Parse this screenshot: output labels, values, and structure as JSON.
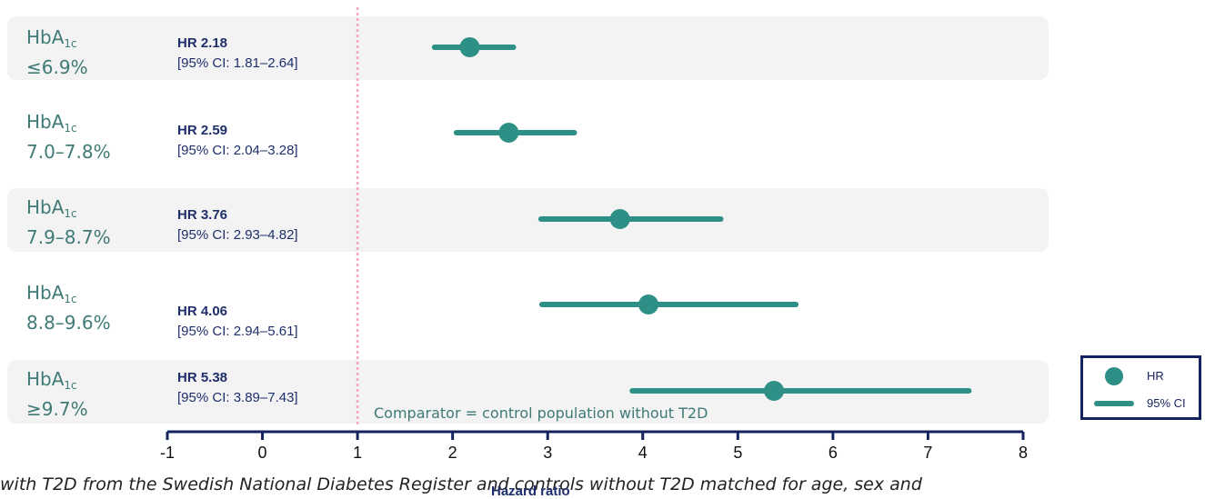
{
  "chart_data": {
    "type": "forest",
    "rows": [
      {
        "label_main": "HbA",
        "label_sub": "1c",
        "range": "≤6.9%",
        "hr_label": "HR 2.18",
        "ci_label": "[95% CI: 1.81–2.64]",
        "hr": 2.18,
        "ci_low": 1.81,
        "ci_high": 2.64
      },
      {
        "label_main": "HbA",
        "label_sub": "1c",
        "range": "7.0–7.8%",
        "hr_label": "HR 2.59",
        "ci_label": "[95% CI: 2.04–3.28]",
        "hr": 2.59,
        "ci_low": 2.04,
        "ci_high": 3.28
      },
      {
        "label_main": "HbA",
        "label_sub": "1c",
        "range": "7.9–8.7%",
        "hr_label": "HR 3.76",
        "ci_label": "[95% CI: 2.93–4.82]",
        "hr": 3.76,
        "ci_low": 2.93,
        "ci_high": 4.82
      },
      {
        "label_main": "HbA",
        "label_sub": "1c",
        "range": "8.8–9.6%",
        "hr_label": "HR 4.06",
        "ci_label": "[95% CI: 2.94–5.61]",
        "hr": 4.06,
        "ci_low": 2.94,
        "ci_high": 5.61
      },
      {
        "label_main": "HbA",
        "label_sub": "1c",
        "range": "≥9.7%",
        "hr_label": "HR 5.38",
        "ci_label": "[95% CI: 3.89–7.43]",
        "hr": 5.38,
        "ci_low": 3.89,
        "ci_high": 7.43
      }
    ],
    "xlim": [
      -1,
      8
    ],
    "xticks": [
      -1,
      0,
      1,
      2,
      3,
      4,
      5,
      6,
      7,
      8
    ],
    "reference_line": 1,
    "xlabel": "Hazard ratio",
    "comparator_note": "Comparator = control population without T2D",
    "legend": {
      "hr": "HR",
      "ci": "95% CI",
      "position": "bottom-right"
    },
    "colors": {
      "marker": "#2e8f86",
      "axis": "#14235f",
      "reference": "#f2a6b8",
      "band": "#f3f3f3"
    }
  },
  "footnote": "with T2D from the Swedish National Diabetes Register and controls without T2D matched for age, sex and"
}
